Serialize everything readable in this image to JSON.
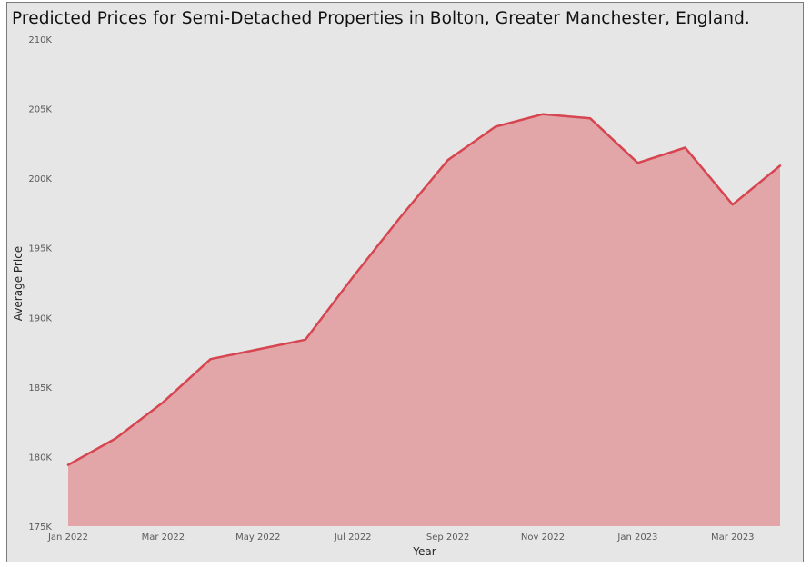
{
  "chart_data": {
    "type": "area",
    "title": "Predicted Prices for Semi-Detached Properties in Bolton, Greater Manchester, England.",
    "xlabel": "Year",
    "ylabel": "Average Price",
    "x": [
      "Jan 2022",
      "Feb 2022",
      "Mar 2022",
      "Apr 2022",
      "May 2022",
      "Jun 2022",
      "Jul 2022",
      "Aug 2022",
      "Sep 2022",
      "Oct 2022",
      "Nov 2022",
      "Dec 2022",
      "Jan 2023",
      "Feb 2023",
      "Mar 2023",
      "Apr 2023"
    ],
    "x_tick_labels": [
      "Jan 2022",
      "Mar 2022",
      "May 2022",
      "Jul 2022",
      "Sep 2022",
      "Nov 2022",
      "Jan 2023",
      "Mar 2023"
    ],
    "y_tick_values": [
      175000,
      180000,
      185000,
      190000,
      195000,
      200000,
      205000,
      210000
    ],
    "y_tick_labels": [
      "175K",
      "180K",
      "185K",
      "190K",
      "195K",
      "200K",
      "205K",
      "210K"
    ],
    "ylim": [
      175000,
      210000
    ],
    "grid": false,
    "series": [
      {
        "values": [
          179400,
          181300,
          183900,
          187000,
          187700,
          188400,
          192900,
          197200,
          201300,
          203700,
          204600,
          204300,
          201100,
          202200,
          198100,
          200900
        ],
        "line_color": "#d64550",
        "fill_color": "#e2a6a9"
      }
    ]
  }
}
